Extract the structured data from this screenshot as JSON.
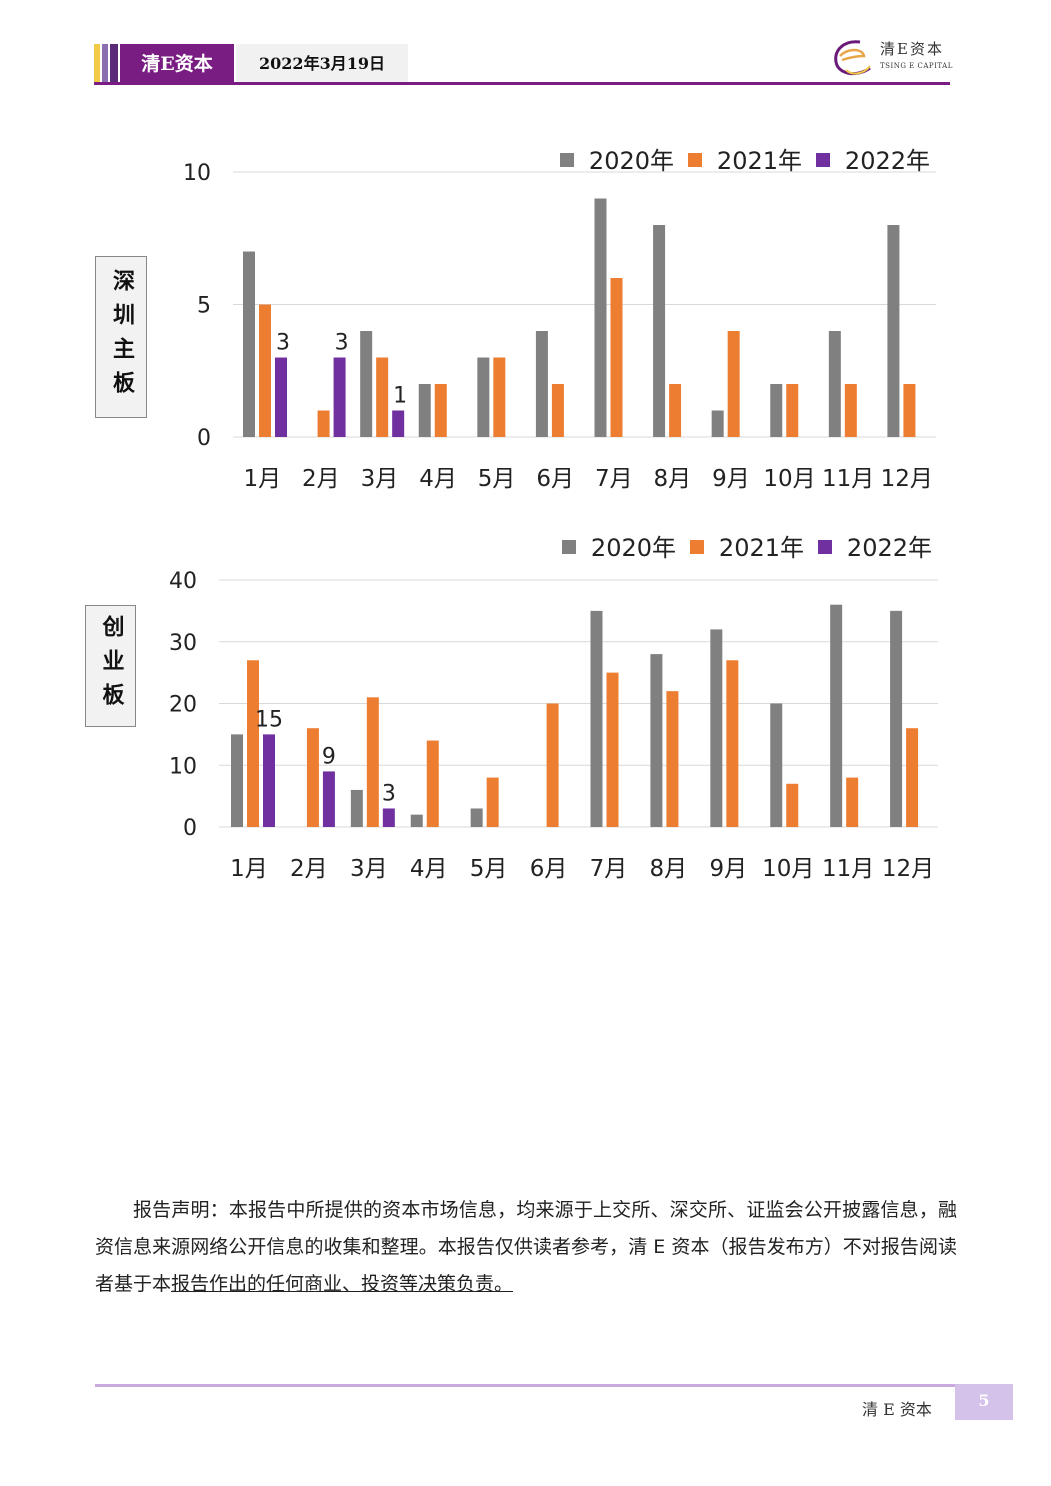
{
  "header": {
    "brand": "清E资本",
    "date": "2022年3月19日",
    "logo_cn": "清E资本",
    "logo_en": "TSING E CAPITAL"
  },
  "colors": {
    "brand_purple": "#7a1d82",
    "series_2020": "#808080",
    "series_2021": "#ed7d31",
    "series_2022": "#7030a0",
    "footer_accent": "#d5c2ea"
  },
  "boards": {
    "sz_main": "深圳主板",
    "chinext": "创业板"
  },
  "chart_data": [
    {
      "type": "bar",
      "categories": [
        "1月",
        "2月",
        "3月",
        "4月",
        "5月",
        "6月",
        "7月",
        "8月",
        "9月",
        "10月",
        "11月",
        "12月"
      ],
      "series": [
        {
          "name": "2020年",
          "values": [
            7,
            0,
            4,
            2,
            3,
            4,
            9,
            8,
            1,
            2,
            4,
            8
          ]
        },
        {
          "name": "2021年",
          "values": [
            5,
            1,
            3,
            2,
            3,
            2,
            6,
            2,
            4,
            2,
            2,
            2
          ]
        },
        {
          "name": "2022年",
          "values": [
            3,
            3,
            1,
            null,
            null,
            null,
            null,
            null,
            null,
            null,
            null,
            null
          ]
        }
      ],
      "data_labels": {
        "series": "2022年",
        "values": [
          "3",
          "3",
          "1"
        ]
      },
      "yticks": [
        "0",
        "5",
        "10"
      ],
      "ylim": [
        0,
        10
      ],
      "grid": true,
      "legend_position": "top-right"
    },
    {
      "type": "bar",
      "categories": [
        "1月",
        "2月",
        "3月",
        "4月",
        "5月",
        "6月",
        "7月",
        "8月",
        "9月",
        "10月",
        "11月",
        "12月"
      ],
      "series": [
        {
          "name": "2020年",
          "values": [
            15,
            0,
            6,
            2,
            3,
            0,
            35,
            28,
            32,
            20,
            36,
            35
          ]
        },
        {
          "name": "2021年",
          "values": [
            27,
            16,
            21,
            14,
            8,
            20,
            25,
            22,
            27,
            7,
            8,
            16
          ]
        },
        {
          "name": "2022年",
          "values": [
            15,
            9,
            3,
            null,
            null,
            null,
            null,
            null,
            null,
            null,
            null,
            null
          ]
        }
      ],
      "data_labels": {
        "series": "2022年",
        "values": [
          "15",
          "9",
          "3"
        ]
      },
      "yticks": [
        "0",
        "10",
        "20",
        "30",
        "40"
      ],
      "ylim": [
        0,
        40
      ],
      "grid": true,
      "legend_position": "top-right"
    }
  ],
  "disclaimer": {
    "text": "报告声明：本报告中所提供的资本市场信息，均来源于上交所、深交所、证监会公开披露信息，融资信息来源网络公开信息的收集和整理。本报告仅供读者参考，清 E 资本（报告发布方）不对报告阅读者基于本",
    "underlined": "报告作出的任何商业、投资等决策负责。"
  },
  "footer": {
    "brand": "清 E 资本",
    "page": "5"
  }
}
